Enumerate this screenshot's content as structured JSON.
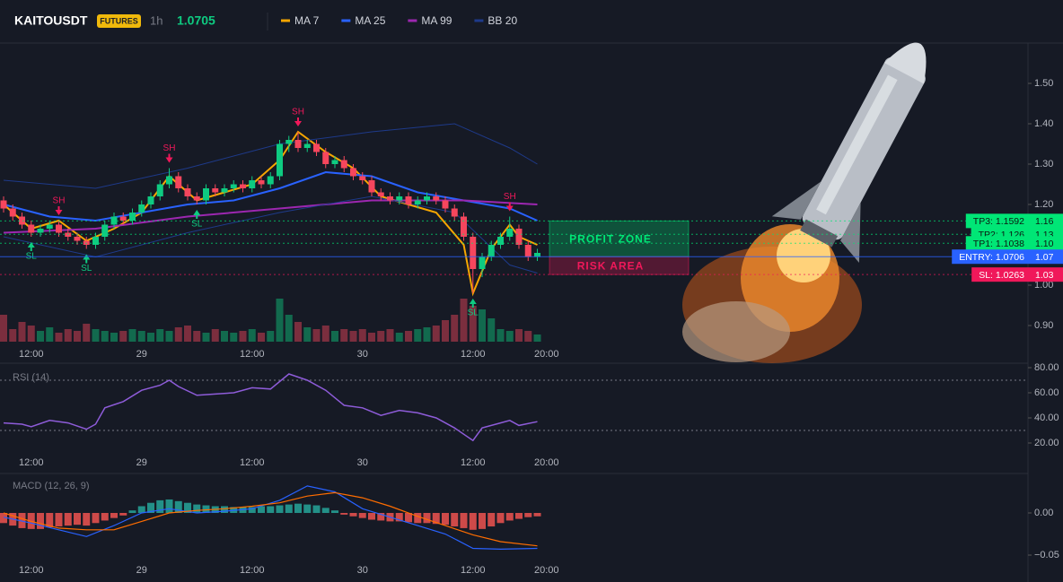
{
  "chart_data": [
    {
      "type": "candlestick",
      "title": "KAITOUSDT",
      "badge": "FUTURES",
      "interval": "1h",
      "last_price": 1.0705,
      "xticks": [
        {
          "value": 3,
          "label": "12:00"
        },
        {
          "value": 15,
          "label": "29"
        },
        {
          "value": 27,
          "label": "12:00"
        },
        {
          "value": 39,
          "label": "30"
        },
        {
          "value": 51,
          "label": "12:00"
        },
        {
          "value": 59,
          "label": "20:00"
        }
      ],
      "ylim": [
        0.87,
        1.59
      ],
      "yticks": [
        {
          "value": 0.9,
          "label": "0.90"
        },
        {
          "value": 1.0,
          "label": "1.00"
        },
        {
          "value": 1.1,
          "label": "1.10"
        },
        {
          "value": 1.2,
          "label": "1.20"
        },
        {
          "value": 1.3,
          "label": "1.30"
        },
        {
          "value": 1.4,
          "label": "1.40"
        },
        {
          "value": 1.5,
          "label": "1.50"
        }
      ],
      "up_color": "#0ecb81",
      "down_color": "#f6465d",
      "open": [
        1.21,
        1.19,
        1.17,
        1.15,
        1.13,
        1.14,
        1.15,
        1.13,
        1.12,
        1.11,
        1.1,
        1.12,
        1.15,
        1.17,
        1.16,
        1.18,
        1.2,
        1.22,
        1.25,
        1.27,
        1.24,
        1.22,
        1.21,
        1.24,
        1.23,
        1.24,
        1.25,
        1.24,
        1.26,
        1.25,
        1.27,
        1.35,
        1.36,
        1.34,
        1.35,
        1.33,
        1.3,
        1.31,
        1.29,
        1.27,
        1.26,
        1.23,
        1.22,
        1.21,
        1.22,
        1.2,
        1.21,
        1.22,
        1.21,
        1.19,
        1.17,
        1.12,
        1.04,
        1.07,
        1.1,
        1.12,
        1.14,
        1.1,
        1.07
      ],
      "high": [
        1.22,
        1.2,
        1.18,
        1.16,
        1.15,
        1.16,
        1.16,
        1.14,
        1.13,
        1.12,
        1.13,
        1.16,
        1.18,
        1.18,
        1.19,
        1.21,
        1.23,
        1.26,
        1.29,
        1.28,
        1.25,
        1.23,
        1.25,
        1.25,
        1.25,
        1.26,
        1.26,
        1.27,
        1.27,
        1.28,
        1.36,
        1.37,
        1.38,
        1.36,
        1.36,
        1.34,
        1.32,
        1.32,
        1.3,
        1.28,
        1.27,
        1.24,
        1.23,
        1.23,
        1.23,
        1.22,
        1.23,
        1.23,
        1.22,
        1.2,
        1.18,
        1.13,
        1.08,
        1.11,
        1.13,
        1.17,
        1.15,
        1.11,
        1.09
      ],
      "low": [
        1.18,
        1.16,
        1.14,
        1.12,
        1.12,
        1.13,
        1.12,
        1.11,
        1.1,
        1.09,
        1.09,
        1.11,
        1.14,
        1.15,
        1.15,
        1.17,
        1.19,
        1.21,
        1.24,
        1.23,
        1.21,
        1.2,
        1.2,
        1.22,
        1.22,
        1.23,
        1.23,
        1.23,
        1.24,
        1.24,
        1.26,
        1.33,
        1.33,
        1.33,
        1.32,
        1.29,
        1.29,
        1.28,
        1.26,
        1.25,
        1.22,
        1.21,
        1.2,
        1.2,
        1.19,
        1.19,
        1.2,
        1.2,
        1.18,
        1.16,
        1.11,
        0.98,
        1.02,
        1.06,
        1.09,
        1.11,
        1.09,
        1.06,
        1.06
      ],
      "close": [
        1.19,
        1.17,
        1.15,
        1.13,
        1.14,
        1.15,
        1.13,
        1.12,
        1.11,
        1.1,
        1.12,
        1.15,
        1.17,
        1.16,
        1.18,
        1.2,
        1.22,
        1.25,
        1.27,
        1.24,
        1.22,
        1.21,
        1.24,
        1.23,
        1.24,
        1.25,
        1.24,
        1.26,
        1.25,
        1.27,
        1.35,
        1.36,
        1.34,
        1.35,
        1.33,
        1.3,
        1.31,
        1.29,
        1.27,
        1.26,
        1.23,
        1.22,
        1.21,
        1.22,
        1.2,
        1.21,
        1.22,
        1.21,
        1.19,
        1.17,
        1.12,
        1.04,
        1.07,
        1.1,
        1.12,
        1.14,
        1.1,
        1.07,
        1.08
      ],
      "volume": [
        30,
        14,
        22,
        18,
        12,
        16,
        10,
        14,
        12,
        20,
        14,
        12,
        10,
        12,
        14,
        12,
        10,
        14,
        12,
        16,
        18,
        12,
        10,
        14,
        12,
        10,
        12,
        14,
        10,
        12,
        48,
        30,
        22,
        16,
        14,
        18,
        12,
        14,
        12,
        14,
        10,
        12,
        14,
        10,
        12,
        14,
        16,
        18,
        24,
        30,
        48,
        40,
        36,
        26,
        14,
        12,
        14,
        12,
        8
      ],
      "pivots": [
        null,
        null,
        null,
        "SL",
        null,
        null,
        "SH",
        null,
        null,
        "SL",
        null,
        null,
        null,
        null,
        null,
        null,
        null,
        null,
        "SH",
        null,
        null,
        "SL",
        null,
        null,
        null,
        null,
        null,
        null,
        null,
        null,
        null,
        null,
        "SH",
        null,
        null,
        null,
        null,
        null,
        null,
        null,
        null,
        null,
        null,
        null,
        null,
        null,
        null,
        null,
        null,
        null,
        null,
        "SL",
        null,
        null,
        null,
        "SH",
        null,
        null,
        null
      ],
      "series": [
        {
          "name": "MA 7",
          "color": "#f7a600",
          "x": [
            0,
            3,
            6,
            9,
            12,
            15,
            18,
            21,
            24,
            27,
            30,
            32,
            35,
            38,
            41,
            44,
            47,
            50,
            51,
            53,
            55,
            56,
            58
          ],
          "values": [
            1.2,
            1.14,
            1.16,
            1.11,
            1.14,
            1.18,
            1.27,
            1.21,
            1.23,
            1.25,
            1.31,
            1.38,
            1.33,
            1.29,
            1.22,
            1.2,
            1.18,
            1.1,
            0.98,
            1.09,
            1.15,
            1.12,
            1.1
          ]
        },
        {
          "name": "MA 25",
          "color": "#2962ff",
          "x": [
            0,
            5,
            10,
            15,
            20,
            25,
            30,
            35,
            40,
            45,
            50,
            55,
            58
          ],
          "values": [
            1.2,
            1.17,
            1.16,
            1.18,
            1.2,
            1.21,
            1.24,
            1.28,
            1.27,
            1.23,
            1.21,
            1.19,
            1.16
          ]
        },
        {
          "name": "MA 99",
          "color": "#9c27b0",
          "x": [
            0,
            10,
            20,
            30,
            40,
            50,
            58
          ],
          "values": [
            1.13,
            1.14,
            1.17,
            1.19,
            1.21,
            1.21,
            1.2
          ]
        },
        {
          "name": "BB 20",
          "color": "#1e3a8a",
          "x": [
            0,
            10,
            20,
            30,
            40,
            49,
            55,
            58
          ],
          "values": [
            1.26,
            1.24,
            1.29,
            1.35,
            1.38,
            1.4,
            1.34,
            1.3
          ],
          "lower": [
            1.12,
            1.07,
            1.13,
            1.18,
            1.22,
            1.18,
            1.05,
            1.03
          ]
        }
      ],
      "levels": [
        {
          "name": "TP3: 1.1592",
          "value": 1.1592,
          "label": "1.16",
          "color": "#00e676"
        },
        {
          "name": "TP2: 1.126",
          "value": 1.126,
          "label": "1.13",
          "color": "#00e676"
        },
        {
          "name": "TP1: 1.1038",
          "value": 1.1038,
          "label": "1.10",
          "color": "#00e676"
        },
        {
          "name": "ENTRY: 1.0706",
          "value": 1.0706,
          "label": "1.07",
          "color": "#2962ff"
        },
        {
          "name": "SL: 1.0263",
          "value": 1.0263,
          "label": "1.03",
          "color": "#f0185a"
        }
      ],
      "zones": [
        {
          "label": "PROFIT ZONE",
          "color": "#00e676"
        },
        {
          "label": "RISK AREA",
          "color": "#f0185a"
        }
      ]
    },
    {
      "type": "line",
      "title": "RSI (14)",
      "color": "#8e5cd9",
      "ylim": [
        10,
        82
      ],
      "yticks": [
        {
          "value": 20,
          "label": "20.00"
        },
        {
          "value": 40,
          "label": "40.00"
        },
        {
          "value": 60,
          "label": "60.00"
        },
        {
          "value": 80,
          "label": "80.00"
        }
      ],
      "bands": [
        70,
        30
      ],
      "x": [
        0,
        2,
        3,
        5,
        7,
        9,
        10,
        11,
        13,
        15,
        17,
        18,
        19,
        21,
        23,
        25,
        27,
        29,
        31,
        33,
        35,
        37,
        39,
        41,
        43,
        45,
        47,
        49,
        51,
        52,
        54,
        55,
        56,
        58
      ],
      "values": [
        36,
        35,
        33,
        38,
        36,
        31,
        35,
        48,
        53,
        62,
        66,
        70,
        65,
        58,
        59,
        60,
        64,
        63,
        75,
        70,
        62,
        50,
        48,
        42,
        46,
        44,
        40,
        32,
        22,
        32,
        36,
        38,
        34,
        37
      ]
    },
    {
      "type": "macd",
      "title": "MACD (12, 26, 9)",
      "ylim": [
        -0.055,
        0.045
      ],
      "yticks": [
        {
          "value": -0.05,
          "label": "−0.05"
        },
        {
          "value": 0,
          "label": "0.00"
        }
      ],
      "pos_color": "#26a69a",
      "neg_color": "#ef5350",
      "histogram": [
        -0.012,
        -0.015,
        -0.018,
        -0.019,
        -0.019,
        -0.017,
        -0.016,
        -0.015,
        -0.014,
        -0.015,
        -0.012,
        -0.009,
        -0.006,
        -0.003,
        0.003,
        0.008,
        0.012,
        0.015,
        0.016,
        0.014,
        0.012,
        0.01,
        0.009,
        0.008,
        0.008,
        0.007,
        0.007,
        0.007,
        0.008,
        0.008,
        0.009,
        0.01,
        0.011,
        0.01,
        0.009,
        0.006,
        0.003,
        -0.002,
        -0.004,
        -0.006,
        -0.008,
        -0.009,
        -0.01,
        -0.01,
        -0.011,
        -0.012,
        -0.012,
        -0.013,
        -0.014,
        -0.016,
        -0.018,
        -0.02,
        -0.019,
        -0.016,
        -0.012,
        -0.009,
        -0.007,
        -0.005,
        -0.004
      ],
      "series": [
        {
          "color": "#2962ff",
          "x": [
            0,
            3,
            6,
            9,
            12,
            15,
            18,
            21,
            24,
            27,
            30,
            33,
            36,
            39,
            42,
            45,
            48,
            51,
            54,
            58
          ],
          "values": [
            -0.005,
            -0.012,
            -0.02,
            -0.028,
            -0.015,
            0.0,
            0.005,
            0.0,
            0.002,
            0.005,
            0.015,
            0.032,
            0.025,
            0.005,
            -0.005,
            -0.015,
            -0.025,
            -0.042,
            -0.043,
            -0.042
          ]
        },
        {
          "color": "#ff6d00",
          "x": [
            0,
            3,
            6,
            9,
            12,
            15,
            18,
            21,
            24,
            27,
            30,
            33,
            36,
            39,
            42,
            45,
            48,
            51,
            54,
            58
          ],
          "values": [
            0.0,
            -0.01,
            -0.018,
            -0.02,
            -0.02,
            -0.01,
            0.0,
            0.003,
            0.005,
            0.008,
            0.012,
            0.02,
            0.024,
            0.018,
            0.008,
            -0.004,
            -0.015,
            -0.026,
            -0.034,
            -0.039
          ]
        }
      ]
    }
  ]
}
